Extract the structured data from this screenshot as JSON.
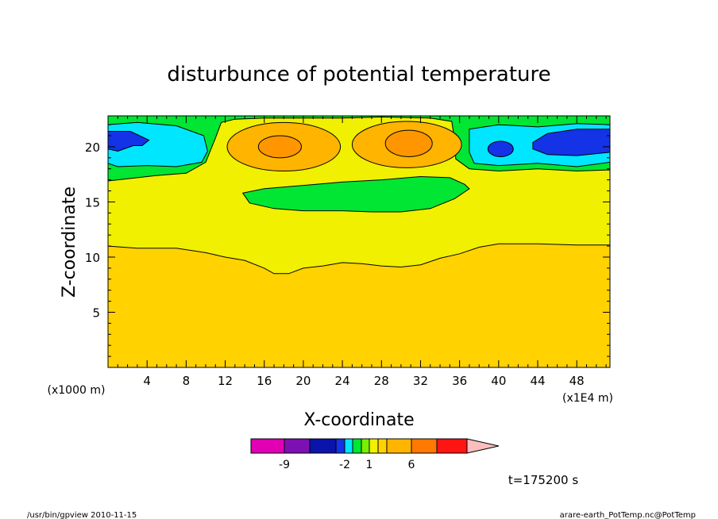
{
  "chart_data": {
    "type": "heatmap",
    "title": "disturbunce of potential temperature",
    "xlabel": "X-coordinate",
    "ylabel": "Z-coordinate",
    "x_unit_left": "(x1000 m)",
    "x_unit_right": "(x1E4 m)",
    "xlim": [
      0,
      51.4
    ],
    "ylim": [
      0,
      22.8
    ],
    "x_ticks": [
      4,
      8,
      12,
      16,
      20,
      24,
      28,
      32,
      36,
      40,
      44,
      48
    ],
    "y_ticks": [
      5,
      10,
      15,
      20
    ],
    "time_label": "t=175200 s",
    "colorbar": {
      "colors": [
        "#e100b4",
        "#7d10b4",
        "#0a14aa",
        "#1432e6",
        "#00e6ff",
        "#00e632",
        "#78f000",
        "#f0f000",
        "#ffd200",
        "#ffb400",
        "#ff7800",
        "#ff1414",
        "#fa7878",
        "#fabebe"
      ],
      "tick_labels": [
        "-9",
        "-2",
        "1",
        "6"
      ]
    },
    "fields": {
      "warm_layer": "#ffd200",
      "mid_layer": "#f0f000",
      "green_band": "#00e632",
      "cyan": "#00e6ff",
      "blue": "#1432e6",
      "orange": "#ffb400",
      "dark_orange": "#ff9600"
    }
  },
  "footer": {
    "left": "/usr/bin/gpview   2010-11-15",
    "right": "arare-earth_PotTemp.nc@PotTemp"
  }
}
